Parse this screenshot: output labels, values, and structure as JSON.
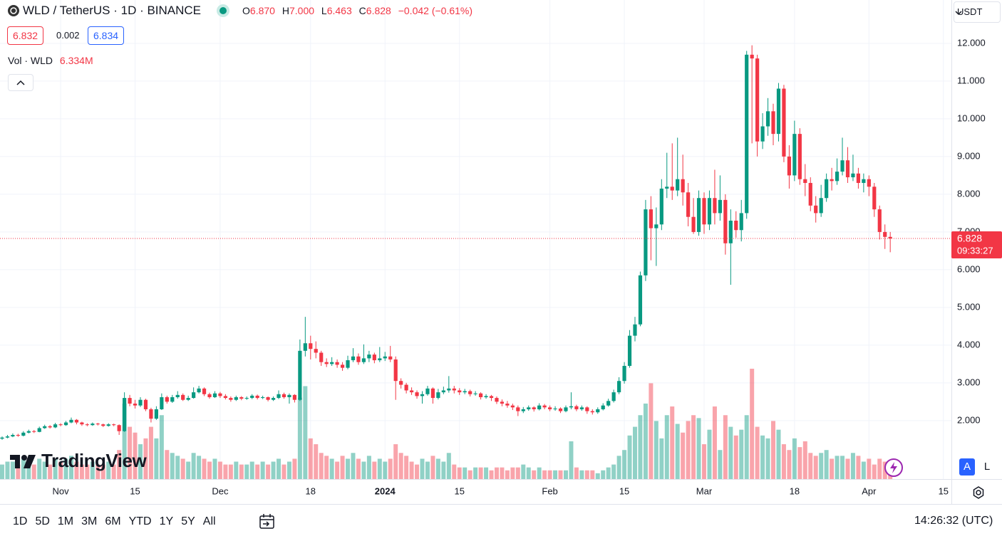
{
  "header": {
    "symbol": "WLD / TetherUS · 1D · BINANCE",
    "o_label": "O",
    "o": "6.870",
    "h_label": "H",
    "h": "7.000",
    "l_label": "L",
    "l": "6.463",
    "c_label": "C",
    "c": "6.828",
    "change": "−0.042 (−0.61%)",
    "bid": "6.832",
    "spread": "0.002",
    "ask": "6.834",
    "vol_label": "Vol · WLD",
    "vol": "6.334M"
  },
  "chart_data": {
    "type": "candlestick",
    "open": [
      1.52,
      1.55,
      1.58,
      1.62,
      1.6,
      1.68,
      1.72,
      1.7,
      1.8,
      1.85,
      1.82,
      1.9,
      1.88,
      1.95,
      2.02,
      1.95,
      1.9,
      1.88,
      1.92,
      1.9,
      1.86,
      1.9,
      1.88,
      1.72,
      2.6,
      2.45,
      2.4,
      2.55,
      2.3,
      2.05,
      2.3,
      2.62,
      2.5,
      2.62,
      2.68,
      2.55,
      2.6,
      2.75,
      2.85,
      2.7,
      2.62,
      2.72,
      2.65,
      2.6,
      2.55,
      2.62,
      2.58,
      2.6,
      2.66,
      2.6,
      2.62,
      2.55,
      2.6,
      2.7,
      2.62,
      2.68,
      2.55,
      3.85,
      4.05,
      3.9,
      3.8,
      3.55,
      3.5,
      3.55,
      3.48,
      3.4,
      3.6,
      3.7,
      3.55,
      3.65,
      3.75,
      3.6,
      3.65,
      3.7,
      3.62,
      3.05,
      2.95,
      2.8,
      2.75,
      2.65,
      2.7,
      2.85,
      2.6,
      2.75,
      2.8,
      2.85,
      2.8,
      2.75,
      2.78,
      2.7,
      2.72,
      2.62,
      2.65,
      2.6,
      2.5,
      2.45,
      2.4,
      2.35,
      2.25,
      2.3,
      2.35,
      2.3,
      2.4,
      2.35,
      2.3,
      2.32,
      2.25,
      2.35,
      2.38,
      2.3,
      2.35,
      2.25,
      2.22,
      2.3,
      2.4,
      2.52,
      2.75,
      3.05,
      3.45,
      4.25,
      4.55,
      5.85,
      7.6,
      7.1,
      7.2,
      8.15,
      8.2,
      8.1,
      8.4,
      8.05,
      7.4,
      7.0,
      7.9,
      7.2,
      7.9,
      7.5,
      7.85,
      6.7,
      7.3,
      7.05,
      7.5,
      11.7,
      11.6,
      9.4,
      9.8,
      10.2,
      9.6,
      10.8,
      9.0,
      8.5,
      9.6,
      8.4,
      8.3,
      7.7,
      7.5,
      7.9,
      8.4,
      8.35,
      8.6,
      8.9,
      8.45,
      8.55,
      8.3,
      8.4,
      8.2,
      7.6,
      7.0,
      6.87
    ],
    "high": [
      1.58,
      1.62,
      1.66,
      1.65,
      1.72,
      1.76,
      1.75,
      1.84,
      1.89,
      1.88,
      1.94,
      1.93,
      1.99,
      2.08,
      2.04,
      1.97,
      1.93,
      1.95,
      1.94,
      1.92,
      1.93,
      1.92,
      1.9,
      2.75,
      2.68,
      2.55,
      2.62,
      2.58,
      2.34,
      2.38,
      2.72,
      2.66,
      2.68,
      2.78,
      2.72,
      2.66,
      2.88,
      2.92,
      2.88,
      2.74,
      2.78,
      2.76,
      2.7,
      2.64,
      2.66,
      2.65,
      2.64,
      2.7,
      2.69,
      2.66,
      2.64,
      2.64,
      2.8,
      2.74,
      2.72,
      2.7,
      4.15,
      4.75,
      4.25,
      4.1,
      3.85,
      3.65,
      3.68,
      3.62,
      3.55,
      3.72,
      3.92,
      3.78,
      4.02,
      3.85,
      3.8,
      3.95,
      3.82,
      3.98,
      3.7,
      3.12,
      3.0,
      2.88,
      2.8,
      2.78,
      2.92,
      2.88,
      2.84,
      2.9,
      3.18,
      2.92,
      2.86,
      2.84,
      2.82,
      2.78,
      2.75,
      2.7,
      2.68,
      2.64,
      2.56,
      2.52,
      2.45,
      2.4,
      2.36,
      2.4,
      2.38,
      2.46,
      2.44,
      2.4,
      2.38,
      2.35,
      2.4,
      2.75,
      2.42,
      2.4,
      2.38,
      2.3,
      2.35,
      2.46,
      2.58,
      2.82,
      3.15,
      3.55,
      4.4,
      4.75,
      5.95,
      7.85,
      7.95,
      7.65,
      8.4,
      9.1,
      9.35,
      9.5,
      9.05,
      8.3,
      7.9,
      8.1,
      8.05,
      8.1,
      8.65,
      8.5,
      8.0,
      7.6,
      7.55,
      7.85,
      11.8,
      11.95,
      11.7,
      10.15,
      10.55,
      10.4,
      10.95,
      10.9,
      9.3,
      9.95,
      9.75,
      8.8,
      8.45,
      7.95,
      8.25,
      8.55,
      8.7,
      8.95,
      9.5,
      9.25,
      9.05,
      8.7,
      8.55,
      8.5,
      8.3,
      7.7,
      7.2,
      7.0
    ],
    "low": [
      1.49,
      1.53,
      1.56,
      1.57,
      1.58,
      1.66,
      1.67,
      1.69,
      1.78,
      1.79,
      1.8,
      1.85,
      1.86,
      1.93,
      1.9,
      1.86,
      1.85,
      1.86,
      1.87,
      1.83,
      1.84,
      1.85,
      1.62,
      1.7,
      2.38,
      2.32,
      2.36,
      2.25,
      1.95,
      2.02,
      2.28,
      2.45,
      2.47,
      2.58,
      2.52,
      2.52,
      2.58,
      2.72,
      2.65,
      2.58,
      2.6,
      2.6,
      2.56,
      2.5,
      2.52,
      2.54,
      2.55,
      2.57,
      2.56,
      2.57,
      2.51,
      2.52,
      2.57,
      2.58,
      2.45,
      2.48,
      2.52,
      3.7,
      3.62,
      3.65,
      3.45,
      3.42,
      3.45,
      3.4,
      3.32,
      3.36,
      3.55,
      3.48,
      3.5,
      3.55,
      3.52,
      3.55,
      3.58,
      3.55,
      2.55,
      2.85,
      2.72,
      2.68,
      2.58,
      2.45,
      2.66,
      2.45,
      2.56,
      2.7,
      2.74,
      2.72,
      2.68,
      2.7,
      2.64,
      2.66,
      2.56,
      2.58,
      2.52,
      2.44,
      2.38,
      2.34,
      2.28,
      2.12,
      2.2,
      2.26,
      2.24,
      2.27,
      2.3,
      2.25,
      2.26,
      2.2,
      2.22,
      2.3,
      2.25,
      2.26,
      2.18,
      2.16,
      2.18,
      2.27,
      2.37,
      2.48,
      2.7,
      2.98,
      3.4,
      4.1,
      4.5,
      5.7,
      6.25,
      6.1,
      7.05,
      7.9,
      7.85,
      7.95,
      7.7,
      7.15,
      6.95,
      6.9,
      6.95,
      7.05,
      7.2,
      7.3,
      6.4,
      5.6,
      6.85,
      6.75,
      7.35,
      9.35,
      9.0,
      9.2,
      9.55,
      9.3,
      9.4,
      8.85,
      8.15,
      8.35,
      8.25,
      7.95,
      7.55,
      7.25,
      7.4,
      7.8,
      8.1,
      8.25,
      8.5,
      8.3,
      8.35,
      8.15,
      8.05,
      7.95,
      7.4,
      6.8,
      6.55,
      6.463
    ],
    "close": [
      1.55,
      1.58,
      1.62,
      1.6,
      1.68,
      1.72,
      1.7,
      1.8,
      1.85,
      1.82,
      1.9,
      1.88,
      1.95,
      2.02,
      1.95,
      1.9,
      1.88,
      1.92,
      1.9,
      1.86,
      1.9,
      1.88,
      1.72,
      2.6,
      2.45,
      2.4,
      2.55,
      2.3,
      2.05,
      2.3,
      2.62,
      2.5,
      2.62,
      2.68,
      2.55,
      2.6,
      2.75,
      2.85,
      2.7,
      2.62,
      2.72,
      2.65,
      2.6,
      2.55,
      2.62,
      2.58,
      2.6,
      2.66,
      2.6,
      2.62,
      2.55,
      2.6,
      2.7,
      2.62,
      2.68,
      2.55,
      3.85,
      4.05,
      3.9,
      3.8,
      3.55,
      3.5,
      3.55,
      3.48,
      3.4,
      3.6,
      3.7,
      3.55,
      3.65,
      3.75,
      3.6,
      3.65,
      3.7,
      3.62,
      3.05,
      2.95,
      2.8,
      2.75,
      2.65,
      2.7,
      2.85,
      2.6,
      2.75,
      2.8,
      2.85,
      2.8,
      2.75,
      2.78,
      2.7,
      2.72,
      2.62,
      2.65,
      2.6,
      2.5,
      2.45,
      2.4,
      2.35,
      2.25,
      2.3,
      2.35,
      2.3,
      2.4,
      2.35,
      2.3,
      2.32,
      2.25,
      2.35,
      2.38,
      2.3,
      2.35,
      2.25,
      2.22,
      2.3,
      2.4,
      2.52,
      2.75,
      3.05,
      3.45,
      4.25,
      4.55,
      5.85,
      7.6,
      7.1,
      7.2,
      8.15,
      8.2,
      8.1,
      8.4,
      8.05,
      7.4,
      7.0,
      7.9,
      7.2,
      7.9,
      7.5,
      7.85,
      6.7,
      7.3,
      7.05,
      7.5,
      11.7,
      11.6,
      9.4,
      9.8,
      10.2,
      9.6,
      10.8,
      9.0,
      8.5,
      9.6,
      8.4,
      8.3,
      7.7,
      7.5,
      7.9,
      8.4,
      8.35,
      8.6,
      8.9,
      8.45,
      8.55,
      8.3,
      8.4,
      8.2,
      7.6,
      7.0,
      6.87,
      6.828
    ],
    "volume": [
      5,
      6,
      6,
      5,
      7,
      6,
      5,
      7,
      6,
      5,
      7,
      6,
      7,
      8,
      6,
      5,
      5,
      6,
      5,
      5,
      6,
      5,
      10,
      26,
      18,
      16,
      12,
      14,
      18,
      14,
      22,
      10,
      9,
      8,
      7,
      6,
      9,
      8,
      7,
      6,
      7,
      6,
      5,
      5,
      6,
      5,
      5,
      6,
      5,
      6,
      5,
      6,
      7,
      5,
      6,
      7,
      28,
      32,
      14,
      12,
      9,
      8,
      7,
      6,
      8,
      7,
      9,
      7,
      6,
      8,
      6,
      7,
      6,
      7,
      12,
      9,
      8,
      6,
      5,
      7,
      6,
      8,
      7,
      6,
      9,
      5,
      4,
      4,
      3,
      4,
      4,
      4,
      3,
      4,
      4,
      3,
      4,
      4,
      5,
      4,
      3,
      4,
      3,
      3,
      3,
      3,
      3,
      13,
      4,
      3,
      3,
      3,
      2,
      3,
      4,
      5,
      8,
      10,
      15,
      18,
      22,
      26,
      33,
      20,
      14,
      22,
      25,
      19,
      16,
      20,
      22,
      21,
      12,
      17,
      25,
      10,
      22,
      18,
      15,
      17,
      22,
      38,
      18,
      15,
      14,
      20,
      17,
      12,
      10,
      14,
      11,
      13,
      9,
      8,
      9,
      10,
      7,
      8,
      8,
      7,
      9,
      8,
      6,
      7,
      5,
      7,
      6,
      6.334
    ],
    "up_color": "#089981",
    "down_color": "#f23645",
    "xlim": [
      -0.4,
      178.5
    ],
    "xticks": [
      {
        "value": 11,
        "label": "Nov"
      },
      {
        "value": 25,
        "label": "15"
      },
      {
        "value": 41,
        "label": "Dec"
      },
      {
        "value": 58,
        "label": "18"
      },
      {
        "value": 72,
        "label": "2024",
        "bold": true
      },
      {
        "value": 86,
        "label": "15"
      },
      {
        "value": 103,
        "label": "Feb"
      },
      {
        "value": 117,
        "label": "15"
      },
      {
        "value": 132,
        "label": "Mar"
      },
      {
        "value": 149,
        "label": "18"
      },
      {
        "value": 163,
        "label": "Apr"
      },
      {
        "value": 177,
        "label": "15"
      }
    ],
    "ylim": [
      0.45,
      13.15
    ],
    "yticks": [
      {
        "value": 2,
        "label": "2.000"
      },
      {
        "value": 3,
        "label": "3.000"
      },
      {
        "value": 4,
        "label": "4.000"
      },
      {
        "value": 5,
        "label": "5.000"
      },
      {
        "value": 6,
        "label": "6.000"
      },
      {
        "value": 7,
        "label": "7.000"
      },
      {
        "value": 8,
        "label": "8.000"
      },
      {
        "value": 9,
        "label": "9.000"
      },
      {
        "value": 10,
        "label": "10.000"
      },
      {
        "value": 11,
        "label": "11.000"
      },
      {
        "value": 12,
        "label": "12.000"
      }
    ],
    "grid": true,
    "last_price": 6.828,
    "countdown": "09:33:27",
    "currency": "USDT"
  },
  "logo": "TradingView",
  "scale_buttons": [
    "A",
    "L"
  ],
  "toolbar": {
    "ranges": [
      "1D",
      "5D",
      "1M",
      "3M",
      "6M",
      "YTD",
      "1Y",
      "5Y",
      "All"
    ],
    "clock": "14:26:32 (UTC)"
  }
}
